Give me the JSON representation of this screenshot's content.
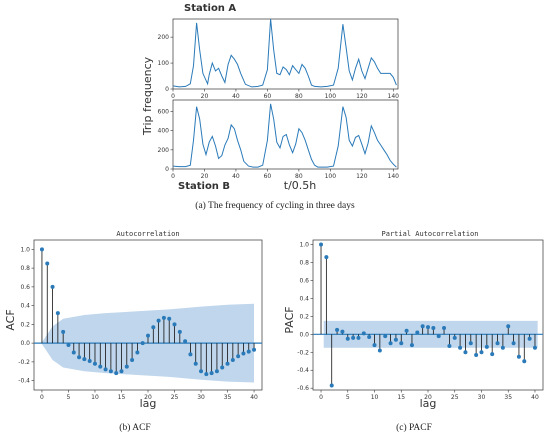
{
  "chart_data": [
    {
      "type": "line",
      "title": "Station A",
      "ylabel": "Trip frequency",
      "xlim": [
        0,
        143
      ],
      "ylim": [
        0,
        270
      ],
      "xticks": [
        0,
        20,
        40,
        60,
        80,
        100,
        120,
        140
      ],
      "yticks": [
        0,
        100,
        200
      ],
      "series": [
        {
          "color": "#2a7ab9",
          "x": [
            0,
            4,
            8,
            11,
            13,
            15,
            17,
            19,
            22,
            23,
            25,
            27,
            29,
            31,
            33,
            35,
            37,
            39,
            41,
            43,
            46,
            50,
            54,
            57,
            60,
            62,
            64,
            66,
            68,
            70,
            72,
            74,
            76,
            78,
            80,
            82,
            84,
            86,
            88,
            90,
            94,
            98,
            102,
            105,
            108,
            110,
            112,
            114,
            116,
            118,
            120,
            122,
            124,
            126,
            128,
            130,
            132,
            134,
            136,
            138,
            140,
            142
          ],
          "y": [
            12,
            8,
            10,
            20,
            90,
            255,
            150,
            60,
            20,
            55,
            100,
            70,
            80,
            50,
            25,
            95,
            130,
            115,
            95,
            60,
            18,
            8,
            10,
            15,
            75,
            270,
            150,
            60,
            55,
            85,
            75,
            55,
            90,
            75,
            60,
            95,
            80,
            50,
            15,
            10,
            8,
            10,
            15,
            80,
            250,
            160,
            70,
            35,
            80,
            115,
            70,
            40,
            80,
            120,
            105,
            80,
            60,
            60,
            60,
            60,
            45,
            15
          ]
        }
      ]
    },
    {
      "type": "line",
      "title": "Station B",
      "xlabel": "t/0.5h",
      "xlim": [
        0,
        143
      ],
      "ylim": [
        0,
        720
      ],
      "xticks": [
        0,
        20,
        40,
        60,
        80,
        100,
        120,
        140
      ],
      "yticks": [
        0,
        200,
        400,
        600
      ],
      "series": [
        {
          "color": "#2a7ab9",
          "x": [
            0,
            4,
            8,
            11,
            13,
            15,
            17,
            19,
            21,
            23,
            25,
            27,
            29,
            31,
            33,
            35,
            37,
            39,
            41,
            43,
            45,
            48,
            51,
            54,
            57,
            60,
            62,
            64,
            66,
            68,
            70,
            72,
            74,
            76,
            78,
            80,
            82,
            84,
            86,
            88,
            90,
            92,
            95,
            98,
            102,
            105,
            108,
            110,
            112,
            114,
            116,
            118,
            120,
            122,
            124,
            126,
            128,
            130,
            132,
            134,
            136,
            138,
            140,
            142
          ],
          "y": [
            30,
            25,
            25,
            40,
            300,
            650,
            520,
            260,
            150,
            280,
            340,
            240,
            110,
            140,
            250,
            320,
            460,
            420,
            300,
            200,
            80,
            30,
            20,
            20,
            40,
            300,
            680,
            520,
            280,
            220,
            340,
            360,
            250,
            170,
            260,
            420,
            380,
            300,
            200,
            100,
            40,
            20,
            20,
            20,
            30,
            240,
            650,
            540,
            300,
            240,
            330,
            350,
            260,
            160,
            270,
            450,
            380,
            300,
            250,
            200,
            150,
            90,
            50,
            20
          ]
        }
      ]
    },
    {
      "type": "bar",
      "title": "Autocorrelation",
      "xlabel": "lag",
      "ylabel": "ACF",
      "xlim": [
        -1.5,
        41.5
      ],
      "ylim": [
        -0.5,
        1.1
      ],
      "xticks": [
        0,
        5,
        10,
        15,
        20,
        25,
        30,
        35,
        40
      ],
      "yticks": [
        -0.4,
        -0.2,
        0.0,
        0.2,
        0.4,
        0.6,
        0.8,
        1.0
      ],
      "lags": [
        0,
        1,
        2,
        3,
        4,
        5,
        6,
        7,
        8,
        9,
        10,
        11,
        12,
        13,
        14,
        15,
        16,
        17,
        18,
        19,
        20,
        21,
        22,
        23,
        24,
        25,
        26,
        27,
        28,
        29,
        30,
        31,
        32,
        33,
        34,
        35,
        36,
        37,
        38,
        39,
        40
      ],
      "values": [
        1.0,
        0.85,
        0.6,
        0.32,
        0.12,
        -0.02,
        -0.1,
        -0.15,
        -0.17,
        -0.19,
        -0.22,
        -0.25,
        -0.28,
        -0.3,
        -0.32,
        -0.3,
        -0.25,
        -0.18,
        -0.1,
        0.0,
        0.08,
        0.17,
        0.24,
        0.27,
        0.26,
        0.2,
        0.12,
        0.02,
        -0.12,
        -0.22,
        -0.3,
        -0.33,
        -0.32,
        -0.3,
        -0.26,
        -0.22,
        -0.18,
        -0.14,
        -0.11,
        -0.09,
        -0.07
      ],
      "confidence_band": {
        "lags": [
          0,
          2,
          4,
          8,
          12,
          18,
          24,
          30,
          35,
          40
        ],
        "upper": [
          0.01,
          0.18,
          0.26,
          0.3,
          0.32,
          0.34,
          0.36,
          0.39,
          0.41,
          0.42
        ]
      },
      "color": "#2a7ab9"
    },
    {
      "type": "bar",
      "title": "Partial Autocorrelation",
      "xlabel": "lag",
      "ylabel": "PACF",
      "xlim": [
        -1.5,
        41.5
      ],
      "ylim": [
        -0.62,
        1.05
      ],
      "xticks": [
        0,
        5,
        10,
        15,
        20,
        25,
        30,
        35,
        40
      ],
      "yticks": [
        -0.6,
        -0.4,
        -0.2,
        0.0,
        0.2,
        0.4,
        0.6,
        0.8,
        1.0
      ],
      "lags": [
        0,
        1,
        2,
        3,
        4,
        5,
        6,
        7,
        8,
        9,
        10,
        11,
        12,
        13,
        14,
        15,
        16,
        17,
        18,
        19,
        20,
        21,
        22,
        23,
        24,
        25,
        26,
        27,
        28,
        29,
        30,
        31,
        32,
        33,
        34,
        35,
        36,
        37,
        38,
        39,
        40
      ],
      "values": [
        1.0,
        0.86,
        -0.57,
        0.05,
        0.03,
        -0.05,
        -0.04,
        -0.04,
        0.01,
        -0.03,
        -0.12,
        -0.18,
        -0.02,
        -0.1,
        -0.06,
        -0.1,
        0.04,
        -0.12,
        0.02,
        0.09,
        0.08,
        0.07,
        -0.02,
        0.07,
        -0.13,
        -0.04,
        -0.15,
        -0.2,
        -0.1,
        -0.23,
        -0.2,
        -0.14,
        -0.22,
        -0.1,
        -0.15,
        0.09,
        -0.1,
        -0.25,
        -0.3,
        -0.05,
        -0.15
      ],
      "confidence_band": {
        "upper": 0.15
      },
      "color": "#2a7ab9"
    }
  ],
  "captions": {
    "a": "(a)  The frequency of cycling in three days",
    "b": "(b)  ACF",
    "c": "(c)  PACF"
  }
}
